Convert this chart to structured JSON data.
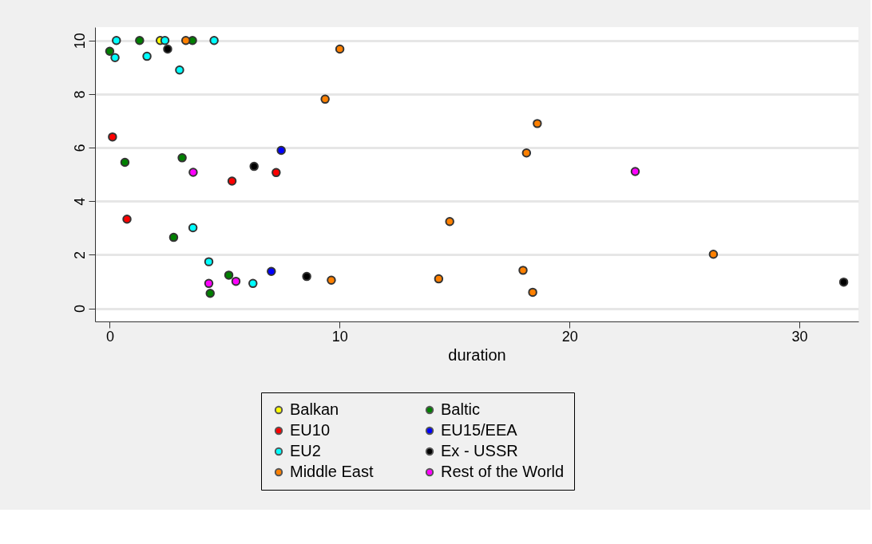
{
  "chart_data": {
    "type": "scatter",
    "xlabel": "duration",
    "xlim": [
      -0.64,
      32.57
    ],
    "ylim": [
      -0.49,
      10.5
    ],
    "xticks": [
      0,
      10,
      20,
      30
    ],
    "yticks": [
      0,
      2,
      4,
      6,
      8,
      10
    ],
    "grid": "y",
    "legend": "bottom",
    "marker": "circle",
    "series": [
      {
        "name": "Balkan",
        "color": "#ffff00",
        "x": [
          2.2
        ],
        "values": [
          10
        ]
      },
      {
        "name": "Baltic",
        "color": "#008000",
        "x": [
          0,
          1.3,
          3.6,
          0.66,
          3.15,
          2.78,
          5.18,
          4.37
        ],
        "values": [
          9.6,
          10,
          10,
          5.45,
          5.62,
          2.65,
          1.24,
          0.56
        ]
      },
      {
        "name": "EU10",
        "color": "#ff0000",
        "x": [
          0.12,
          5.32,
          7.24,
          0.75
        ],
        "values": [
          6.4,
          4.75,
          5.07,
          3.33
        ]
      },
      {
        "name": "EU15/EEA",
        "color": "#0000ff",
        "x": [
          7.46,
          7.03
        ],
        "values": [
          5.9,
          1.38
        ]
      },
      {
        "name": "EU2",
        "color": "#00ffff",
        "x": [
          0.29,
          0.23,
          1.62,
          2.4,
          3.04,
          4.54,
          3.62,
          4.31,
          6.23
        ],
        "values": [
          10,
          9.36,
          9.41,
          10,
          8.9,
          10,
          3.01,
          1.74,
          0.93
        ]
      },
      {
        "name": "Ex - USSR",
        "color": "#000000",
        "x": [
          2.52,
          6.28,
          8.57,
          31.93
        ],
        "values": [
          9.68,
          5.3,
          1.19,
          0.98
        ]
      },
      {
        "name": "Middle East",
        "color": "#ff8000",
        "x": [
          3.31,
          10.01,
          9.37,
          9.64,
          14.31,
          14.79,
          18.6,
          18.13,
          17.98,
          18.4,
          26.26
        ],
        "values": [
          10,
          9.68,
          7.81,
          1.05,
          1.1,
          3.24,
          6.9,
          5.8,
          1.42,
          0.6,
          2.02
        ]
      },
      {
        "name": "Rest of the World",
        "color": "#ff00ff",
        "x": [
          3.63,
          4.31,
          5.49,
          22.86
        ],
        "values": [
          5.08,
          0.93,
          1.01,
          5.11
        ]
      }
    ]
  }
}
